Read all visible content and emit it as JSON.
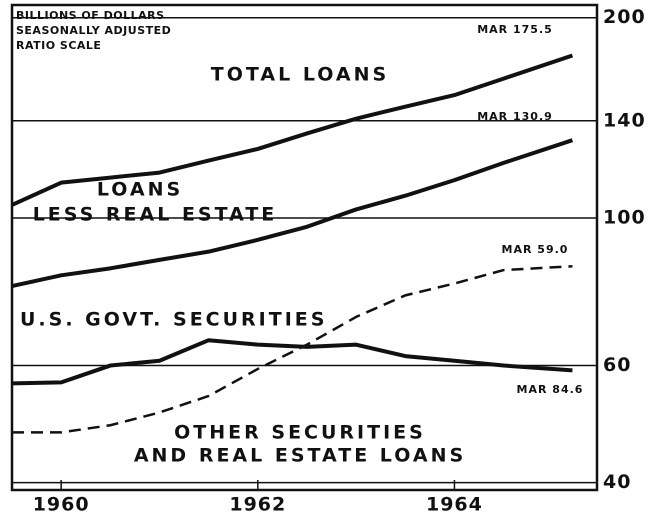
{
  "chart_data": {
    "type": "line",
    "header": [
      "BILLIONS OF DOLLARS",
      "SEASONALLY ADJUSTED",
      "RATIO SCALE"
    ],
    "log_scale": true,
    "grid": true,
    "xlim": [
      1959.5,
      1965.45
    ],
    "xticks": [
      1960,
      1962,
      1964
    ],
    "ylim": [
      39,
      209
    ],
    "yticks": [
      40,
      60,
      100,
      140,
      200
    ],
    "x": [
      1959.5,
      1960,
      1960.5,
      1961,
      1961.5,
      1962,
      1962.5,
      1963,
      1963.5,
      1964,
      1964.5,
      1965.2
    ],
    "series": [
      {
        "name": [
          "TOTAL LOANS"
        ],
        "color": "#111111",
        "dashed": false,
        "values": [
          104.6,
          113,
          115,
          117,
          122,
          127,
          134,
          141,
          147,
          153,
          162,
          175.5
        ],
        "annotation": "MAR 175.5"
      },
      {
        "name": [
          "LOANS",
          "LESS REAL ESTATE"
        ],
        "color": "#111111",
        "dashed": false,
        "values": [
          79,
          82,
          84,
          86.5,
          89,
          92.7,
          97,
          103,
          108,
          114,
          121,
          130.9
        ],
        "annotation": "MAR 130.9"
      },
      {
        "name": [
          "U.S. GOVT. SECURITIES"
        ],
        "color": "#111111",
        "dashed": false,
        "values": [
          56.4,
          56.6,
          60,
          61,
          65.5,
          64.5,
          64,
          64.5,
          62,
          61,
          60,
          59
        ],
        "annotation": "MAR 59.0"
      },
      {
        "name": [
          "OTHER SECURITIES",
          "AND REAL ESTATE LOANS"
        ],
        "color": "#111111",
        "dashed": true,
        "values": [
          47.6,
          47.6,
          48.8,
          51,
          54,
          59.3,
          64.5,
          71,
          76.5,
          79.7,
          83.5,
          84.6
        ],
        "annotation": "MAR 84.6"
      }
    ]
  }
}
